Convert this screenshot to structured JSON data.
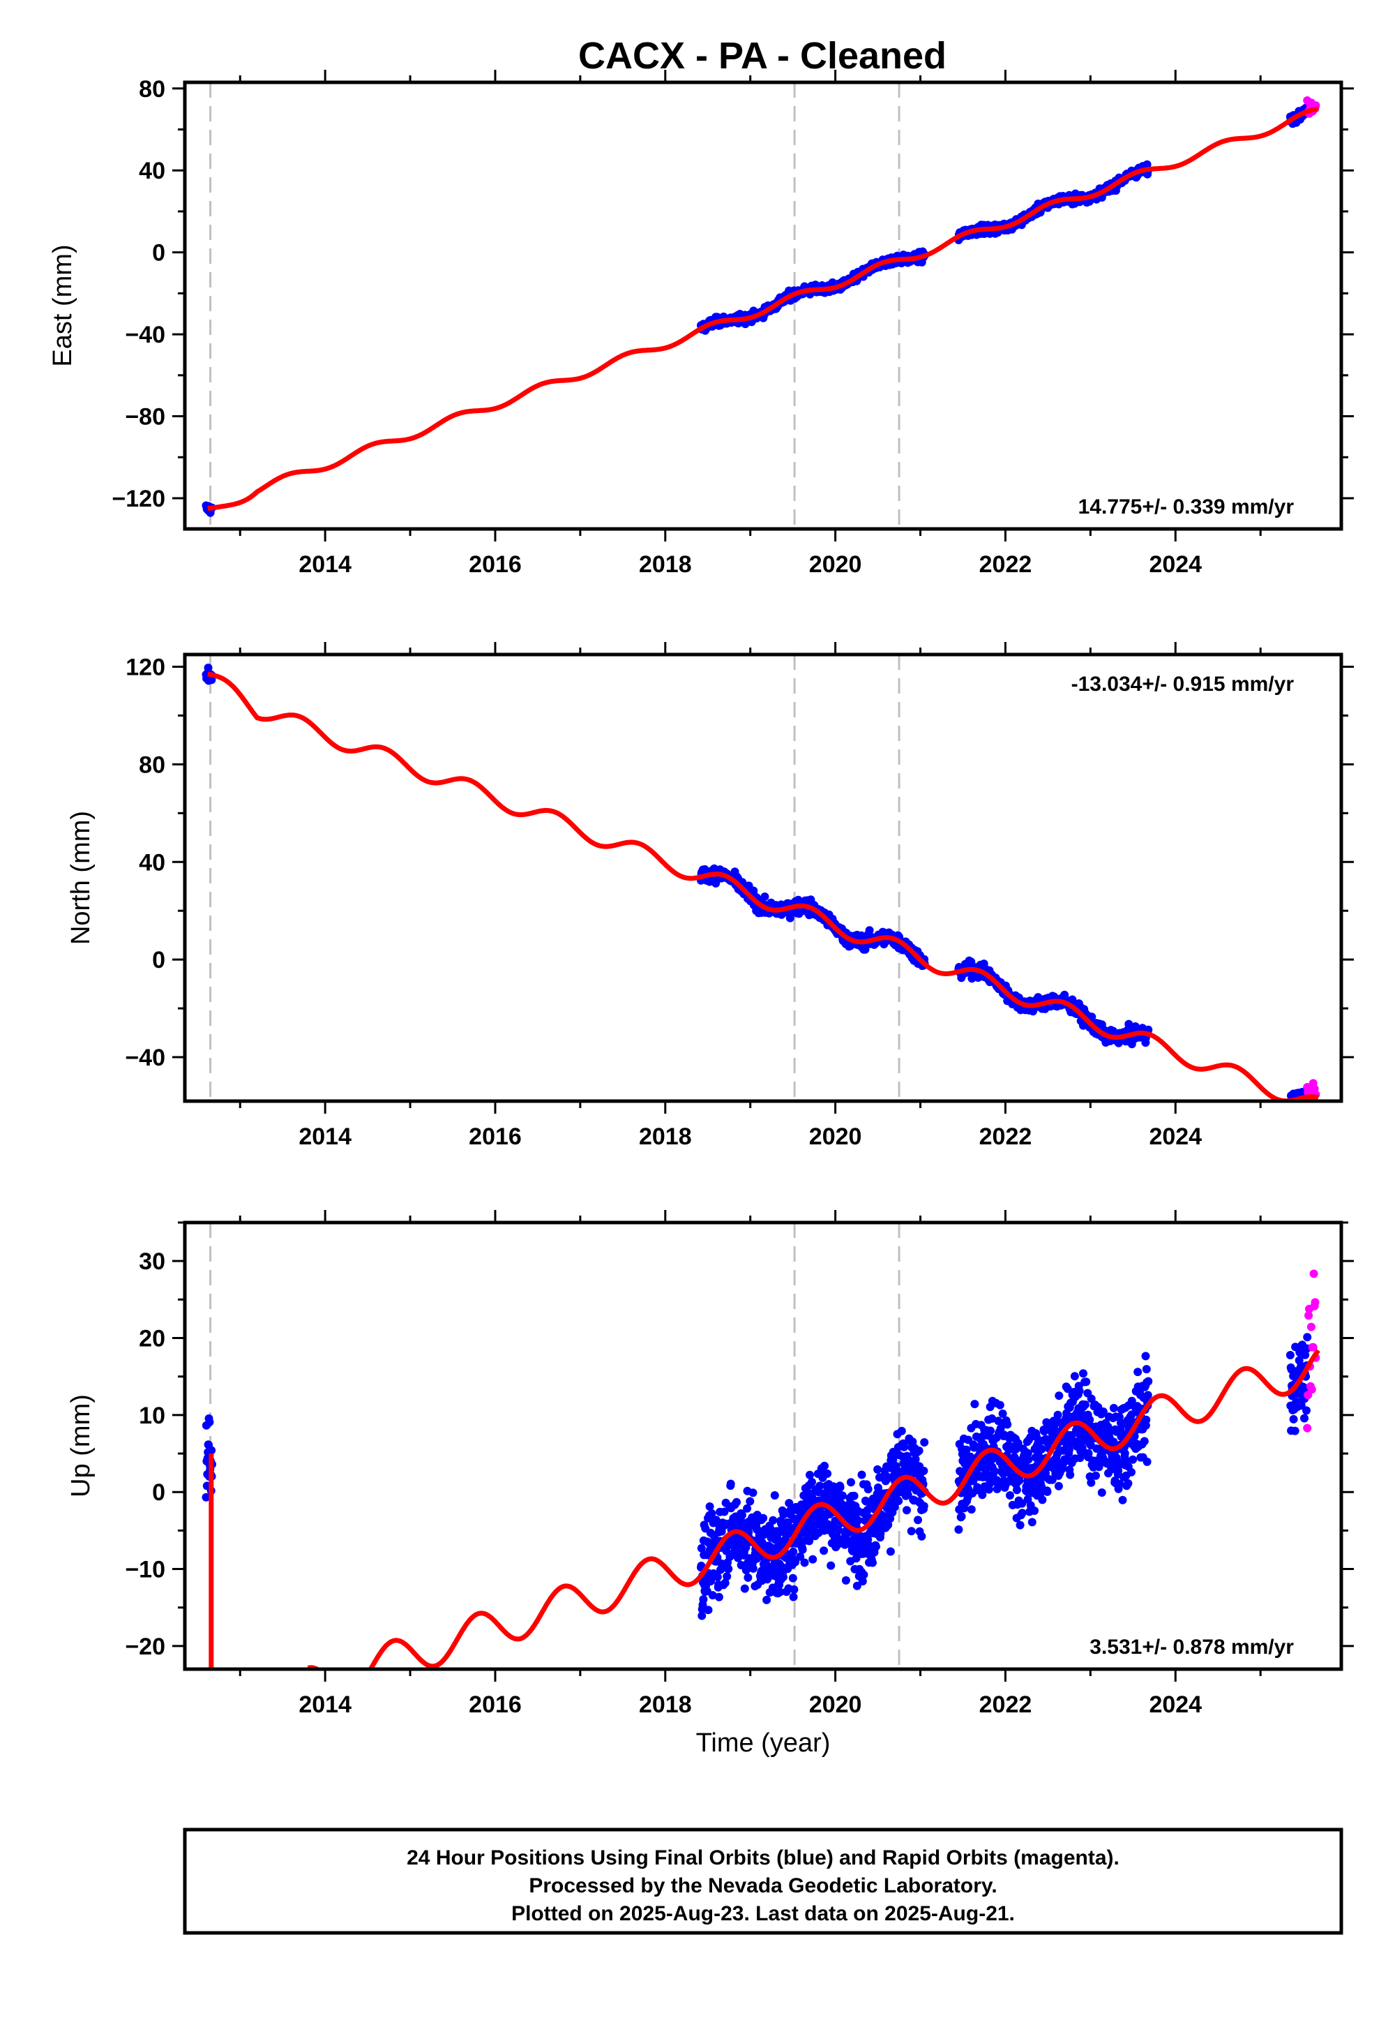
{
  "title": "CACX  - PA - Cleaned",
  "colors": {
    "final_orbits": "#0000ff",
    "rapid_orbits": "#ff00ff",
    "model_fit": "#ff0000",
    "event_lines": "#c0c0c0",
    "frame": "#000000"
  },
  "chart_data": [
    {
      "type": "scatter",
      "panel": "east",
      "ylabel": "East (mm)",
      "xlabel": "",
      "xlim": [
        2012.35,
        2025.95
      ],
      "ylim": [
        -135,
        83
      ],
      "x_ticks": [
        2014,
        2016,
        2018,
        2020,
        2022,
        2024
      ],
      "y_ticks": [
        -120,
        -80,
        -40,
        0,
        40,
        80
      ],
      "y_tick_labels": [
        "−120",
        "−80",
        "−40",
        "0",
        "40",
        "80"
      ],
      "rate_text": "14.775+/- 0.339 mm/yr",
      "rate_position": "bottom-right",
      "event_lines": [
        2012.65,
        2019.52,
        2020.75
      ],
      "model": {
        "rate": 14.775,
        "ref_year": 2019.0,
        "offset": -30,
        "annual_amp": 2.0,
        "annual_phase": 0.3,
        "early_anchor": -125
      },
      "noise_mm": 1.5,
      "final_segments": [
        [
          2012.6,
          2012.67
        ],
        [
          2018.42,
          2020.75
        ],
        [
          2020.75,
          2021.05
        ],
        [
          2021.45,
          2023.68
        ],
        [
          2025.35,
          2025.55
        ]
      ],
      "rapid_range": [
        2025.55,
        2025.65
      ],
      "ends": {
        "2012.60": -127,
        "2018.4": -44,
        "2023.7": 38,
        "2025.6": 68
      }
    },
    {
      "type": "scatter",
      "panel": "north",
      "ylabel": "North (mm)",
      "xlabel": "",
      "xlim": [
        2012.35,
        2025.95
      ],
      "ylim": [
        -58,
        125
      ],
      "x_ticks": [
        2014,
        2016,
        2018,
        2020,
        2022,
        2024
      ],
      "y_ticks": [
        -40,
        0,
        40,
        80,
        120
      ],
      "y_tick_labels": [
        "−40",
        "0",
        "40",
        "80",
        "120"
      ],
      "rate_text": "-13.034+/- 0.915 mm/yr",
      "rate_position": "top-right",
      "event_lines": [
        2012.65,
        2019.52,
        2020.75
      ],
      "model": {
        "rate": -13.034,
        "ref_year": 2019.0,
        "offset": 27,
        "annual_amp": 3.5,
        "annual_phase": 0.45,
        "early_anchor": 117
      },
      "noise_mm": 2.0,
      "final_segments": [
        [
          2012.6,
          2012.67
        ],
        [
          2018.42,
          2020.75
        ],
        [
          2020.75,
          2021.05
        ],
        [
          2021.45,
          2023.68
        ],
        [
          2025.35,
          2025.55
        ]
      ],
      "rapid_range": [
        2025.55,
        2025.65
      ],
      "ends": {
        "2012.60": 118,
        "2018.4": 39,
        "2023.7": -30,
        "2025.6": -52
      }
    },
    {
      "type": "scatter",
      "panel": "up",
      "ylabel": "Up (mm)",
      "xlabel": "Time (year)",
      "xlim": [
        2012.35,
        2025.95
      ],
      "ylim": [
        -23,
        35
      ],
      "x_ticks": [
        2014,
        2016,
        2018,
        2020,
        2022,
        2024
      ],
      "y_ticks": [
        -20,
        -10,
        0,
        10,
        20,
        30
      ],
      "y_tick_labels": [
        "−20",
        "−10",
        "0",
        "10",
        "20",
        "30"
      ],
      "rate_text": "3.531+/- 0.878 mm/yr",
      "rate_position": "bottom-right",
      "event_lines": [
        2012.65,
        2019.52,
        2020.75
      ],
      "model": {
        "rate": 3.531,
        "ref_year": 2019.0,
        "offset": -7,
        "annual_amp": 2.5,
        "annual_phase": 0.55,
        "early_anchor": 5
      },
      "noise_mm": 4.0,
      "final_segments": [
        [
          2012.6,
          2012.67
        ],
        [
          2018.42,
          2020.75
        ],
        [
          2020.75,
          2021.05
        ],
        [
          2021.45,
          2023.68
        ],
        [
          2025.35,
          2025.55
        ]
      ],
      "rapid_range": [
        2025.55,
        2025.65
      ],
      "ends": {
        "2012.60": 5,
        "2018.4": -6,
        "2023.7": 12,
        "2025.6": 18
      }
    }
  ],
  "footer": {
    "line1": "24 Hour Positions Using Final Orbits (blue) and Rapid Orbits (magenta).",
    "line2": "Processed by the Nevada Geodetic Laboratory.",
    "line3": "Plotted on 2025-Aug-23. Last data on 2025-Aug-21."
  }
}
